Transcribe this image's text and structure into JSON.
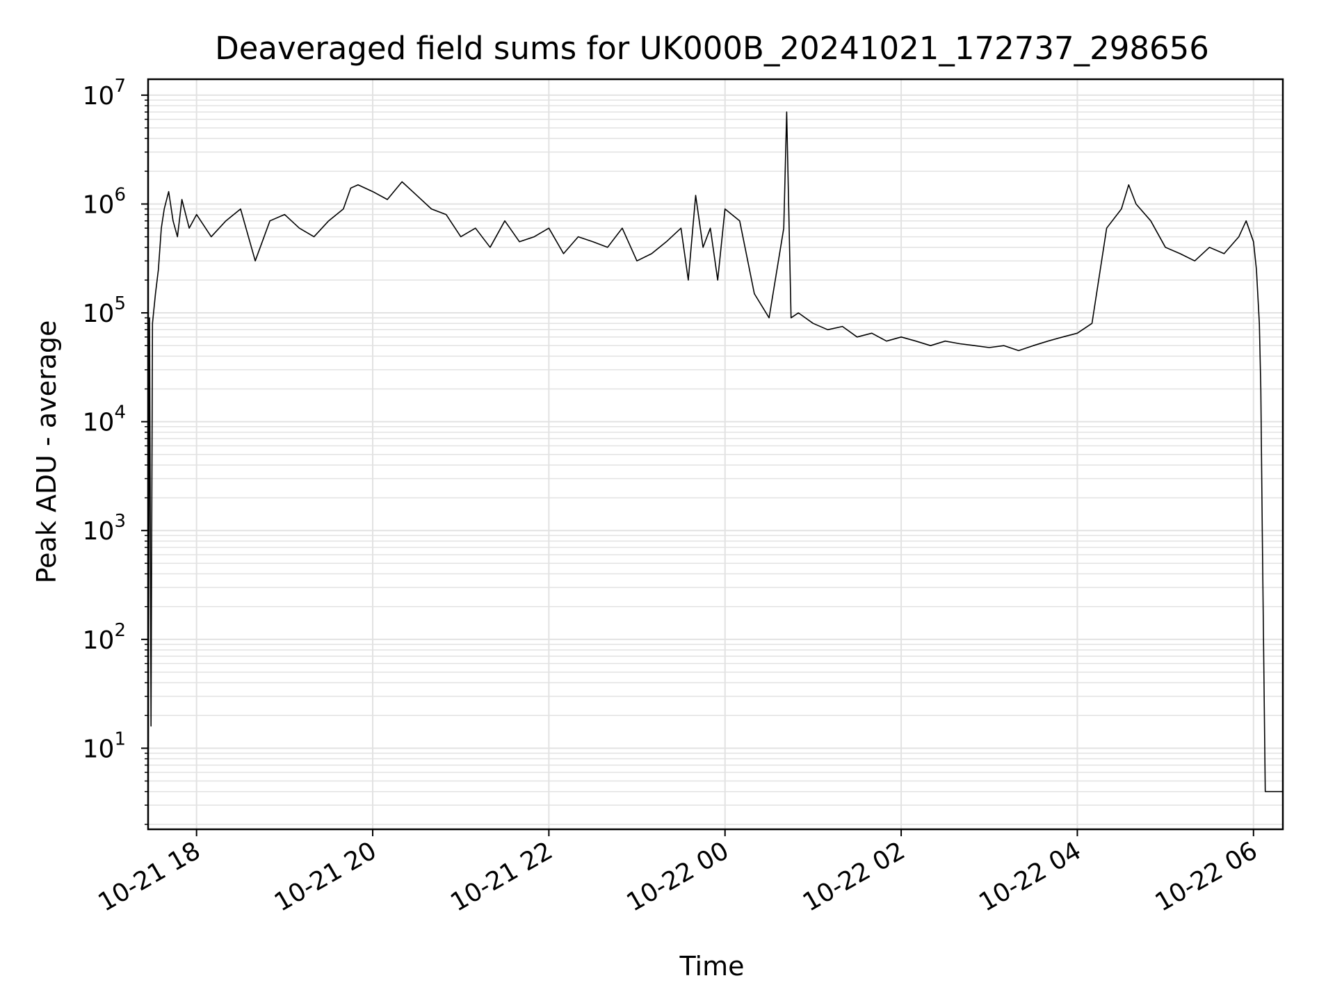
{
  "chart_data": {
    "type": "line",
    "title": "Deaveraged field sums for UK000B_20241021_172737_298656",
    "xlabel": "Time",
    "ylabel": "Peak ADU - average",
    "yscale": "log",
    "grid": true,
    "legend": "none",
    "line_color": "#000000",
    "xlim": [
      "2024-10-21 17:27",
      "2024-10-22 06:20"
    ],
    "ylim": [
      1.8,
      14000000
    ],
    "x_ticks": [
      {
        "value": "2024-10-21 18:00",
        "label": "10-21 18"
      },
      {
        "value": "2024-10-21 20:00",
        "label": "10-21 20"
      },
      {
        "value": "2024-10-21 22:00",
        "label": "10-21 22"
      },
      {
        "value": "2024-10-22 00:00",
        "label": "10-22 00"
      },
      {
        "value": "2024-10-22 02:00",
        "label": "10-22 02"
      },
      {
        "value": "2024-10-22 04:00",
        "label": "10-22 04"
      },
      {
        "value": "2024-10-22 06:00",
        "label": "10-22 06"
      }
    ],
    "y_ticks": [
      {
        "value": 10,
        "base": "10",
        "exp": "1"
      },
      {
        "value": 100,
        "base": "10",
        "exp": "2"
      },
      {
        "value": 1000,
        "base": "10",
        "exp": "3"
      },
      {
        "value": 10000,
        "base": "10",
        "exp": "4"
      },
      {
        "value": 100000,
        "base": "10",
        "exp": "5"
      },
      {
        "value": 1000000,
        "base": "10",
        "exp": "6"
      },
      {
        "value": 10000000,
        "base": "10",
        "exp": "7"
      }
    ],
    "series": [
      {
        "x": [
          "2024-10-21 17:27",
          "2024-10-21 17:28",
          "2024-10-21 17:29",
          "2024-10-21 17:30",
          "2024-10-21 17:32",
          "2024-10-21 17:34",
          "2024-10-21 17:36",
          "2024-10-21 17:38",
          "2024-10-21 17:41",
          "2024-10-21 17:44",
          "2024-10-21 17:47",
          "2024-10-21 17:50",
          "2024-10-21 17:55",
          "2024-10-21 18:00",
          "2024-10-21 18:10",
          "2024-10-21 18:20",
          "2024-10-21 18:30",
          "2024-10-21 18:40",
          "2024-10-21 18:50",
          "2024-10-21 19:00",
          "2024-10-21 19:10",
          "2024-10-21 19:20",
          "2024-10-21 19:30",
          "2024-10-21 19:40",
          "2024-10-21 19:45",
          "2024-10-21 19:50",
          "2024-10-21 20:00",
          "2024-10-21 20:10",
          "2024-10-21 20:20",
          "2024-10-21 20:30",
          "2024-10-21 20:40",
          "2024-10-21 20:50",
          "2024-10-21 21:00",
          "2024-10-21 21:10",
          "2024-10-21 21:20",
          "2024-10-21 21:30",
          "2024-10-21 21:40",
          "2024-10-21 21:50",
          "2024-10-21 22:00",
          "2024-10-21 22:10",
          "2024-10-21 22:20",
          "2024-10-21 22:30",
          "2024-10-21 22:40",
          "2024-10-21 22:50",
          "2024-10-21 23:00",
          "2024-10-21 23:10",
          "2024-10-21 23:20",
          "2024-10-21 23:30",
          "2024-10-21 23:35",
          "2024-10-21 23:40",
          "2024-10-21 23:45",
          "2024-10-21 23:50",
          "2024-10-21 23:55",
          "2024-10-22 00:00",
          "2024-10-22 00:10",
          "2024-10-22 00:20",
          "2024-10-22 00:30",
          "2024-10-22 00:40",
          "2024-10-22 00:42",
          "2024-10-22 00:45",
          "2024-10-22 00:50",
          "2024-10-22 01:00",
          "2024-10-22 01:10",
          "2024-10-22 01:20",
          "2024-10-22 01:30",
          "2024-10-22 01:40",
          "2024-10-22 01:50",
          "2024-10-22 02:00",
          "2024-10-22 02:10",
          "2024-10-22 02:20",
          "2024-10-22 02:30",
          "2024-10-22 02:40",
          "2024-10-22 02:50",
          "2024-10-22 03:00",
          "2024-10-22 03:10",
          "2024-10-22 03:20",
          "2024-10-22 03:30",
          "2024-10-22 03:40",
          "2024-10-22 03:50",
          "2024-10-22 04:00",
          "2024-10-22 04:10",
          "2024-10-22 04:20",
          "2024-10-22 04:30",
          "2024-10-22 04:35",
          "2024-10-22 04:40",
          "2024-10-22 04:50",
          "2024-10-22 05:00",
          "2024-10-22 05:10",
          "2024-10-22 05:20",
          "2024-10-22 05:30",
          "2024-10-22 05:40",
          "2024-10-22 05:50",
          "2024-10-22 05:55",
          "2024-10-22 06:00",
          "2024-10-22 06:02",
          "2024-10-22 06:04",
          "2024-10-22 06:05",
          "2024-10-22 06:06",
          "2024-10-22 06:08",
          "2024-10-22 06:10",
          "2024-10-22 06:15",
          "2024-10-22 06:20"
        ],
        "y": [
          2,
          90000,
          16,
          80000,
          150000,
          250000,
          600000,
          900000,
          1300000,
          700000,
          500000,
          1100000,
          600000,
          800000,
          500000,
          700000,
          900000,
          300000,
          700000,
          800000,
          600000,
          500000,
          700000,
          900000,
          1400000,
          1500000,
          1300000,
          1100000,
          1600000,
          1200000,
          900000,
          800000,
          500000,
          600000,
          400000,
          700000,
          450000,
          500000,
          600000,
          350000,
          500000,
          450000,
          400000,
          600000,
          300000,
          350000,
          450000,
          600000,
          200000,
          1200000,
          400000,
          600000,
          200000,
          900000,
          700000,
          150000,
          90000,
          600000,
          7000000,
          90000,
          100000,
          80000,
          70000,
          75000,
          60000,
          65000,
          55000,
          60000,
          55000,
          50000,
          55000,
          52000,
          50000,
          48000,
          50000,
          45000,
          50000,
          55000,
          60000,
          65000,
          80000,
          600000,
          900000,
          1500000,
          1000000,
          700000,
          400000,
          350000,
          300000,
          400000,
          350000,
          500000,
          700000,
          450000,
          250000,
          80000,
          20000,
          1000,
          4,
          4,
          4,
          4
        ]
      }
    ]
  }
}
